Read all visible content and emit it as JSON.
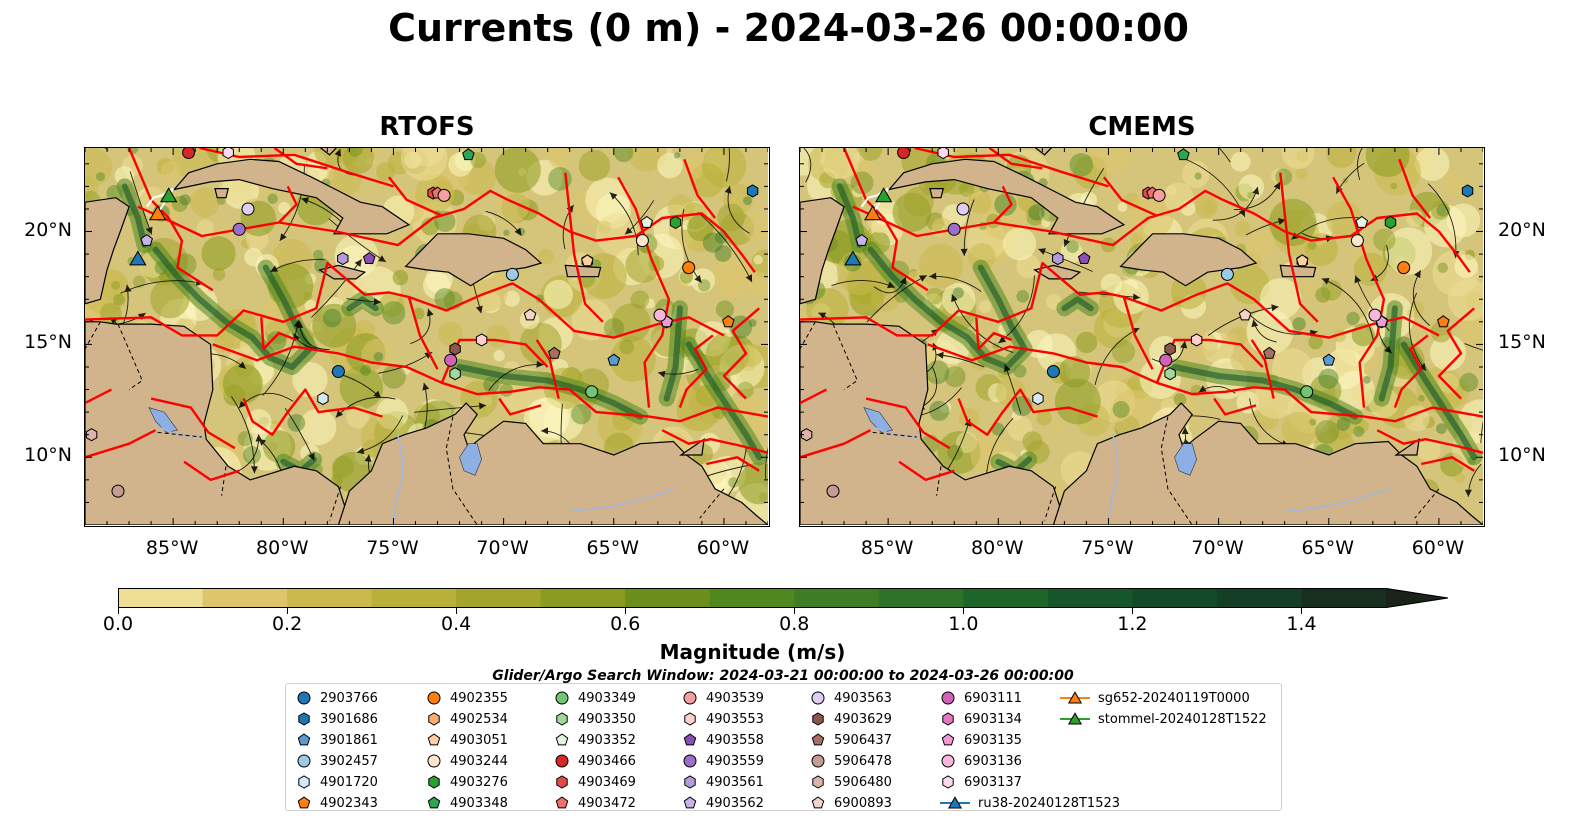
{
  "title": "Currents (0 m) - 2024-03-26 00:00:00",
  "panels": [
    {
      "id": "rtofs",
      "title": "RTOFS"
    },
    {
      "id": "cmems",
      "title": "CMEMS"
    }
  ],
  "map_extent": {
    "lon": [
      -89,
      -58
    ],
    "lat": [
      7,
      23.7
    ]
  },
  "lon_ticks": [
    "85°W",
    "80°W",
    "75°W",
    "70°W",
    "65°W",
    "60°W"
  ],
  "lat_ticks": [
    "20°N",
    "15°N",
    "10°N"
  ],
  "colorbar": {
    "label": "Magnitude (m/s)",
    "range": [
      0.0,
      1.5
    ],
    "extend": "max",
    "tick_labels": [
      "0.0",
      "0.2",
      "0.4",
      "0.6",
      "0.8",
      "1.0",
      "1.2",
      "1.4"
    ],
    "colors": [
      "#fdf7bf",
      "#efdf95",
      "#dcc56b",
      "#cbb94e",
      "#b9b03a",
      "#a2a42b",
      "#8a9b1f",
      "#6c8e1d",
      "#508820",
      "#3e7d25",
      "#2d7227",
      "#1c6629",
      "#15572a",
      "#134b28",
      "#143e25",
      "#172f1e",
      "#1a221a"
    ]
  },
  "colors": {
    "land": "#d2b48c",
    "eez_lines": "#ff0000",
    "rivers": "#a4b6dc",
    "lakes": "#8eafe3"
  },
  "search_window": "Glider/Argo Search Window: 2024-03-21 00:00:00 to 2024-03-26 00:00:00",
  "legend": {
    "items": [
      {
        "label": "2903766",
        "marker": "circle",
        "color": "#1f77b4"
      },
      {
        "label": "3901686",
        "marker": "hexagon",
        "color": "#1f77b4"
      },
      {
        "label": "3901861",
        "marker": "pentagon",
        "color": "#5a9bd4"
      },
      {
        "label": "3902457",
        "marker": "circle",
        "color": "#9ecae9"
      },
      {
        "label": "4901720",
        "marker": "hexagon",
        "color": "#d5e8f8"
      },
      {
        "label": "4902343",
        "marker": "pentagon",
        "color": "#ff7f0e"
      },
      {
        "label": "4902355",
        "marker": "circle",
        "color": "#ff7f0e"
      },
      {
        "label": "4902534",
        "marker": "hexagon",
        "color": "#fdae6b"
      },
      {
        "label": "4903051",
        "marker": "pentagon",
        "color": "#fdd0a2"
      },
      {
        "label": "4903244",
        "marker": "circle",
        "color": "#fee6ce"
      },
      {
        "label": "4903276",
        "marker": "hexagon",
        "color": "#2ca02c"
      },
      {
        "label": "4903348",
        "marker": "pentagon",
        "color": "#31a354"
      },
      {
        "label": "4903349",
        "marker": "circle",
        "color": "#74c476"
      },
      {
        "label": "4903350",
        "marker": "hexagon",
        "color": "#a1d99b"
      },
      {
        "label": "4903352",
        "marker": "pentagon",
        "color": "#e5f5e0"
      },
      {
        "label": "4903466",
        "marker": "circle",
        "color": "#d62728"
      },
      {
        "label": "4903469",
        "marker": "hexagon",
        "color": "#e34a4a"
      },
      {
        "label": "4903472",
        "marker": "pentagon",
        "color": "#f07070"
      },
      {
        "label": "4903539",
        "marker": "circle",
        "color": "#f4a0a0"
      },
      {
        "label": "4903553",
        "marker": "hexagon",
        "color": "#fdd0cf"
      },
      {
        "label": "4903558",
        "marker": "pentagon",
        "color": "#8a4fb5"
      },
      {
        "label": "4903559",
        "marker": "circle",
        "color": "#9e6fc9"
      },
      {
        "label": "4903561",
        "marker": "hexagon",
        "color": "#b49be0"
      },
      {
        "label": "4903562",
        "marker": "pentagon",
        "color": "#c5b3ea"
      },
      {
        "label": "4903563",
        "marker": "circle",
        "color": "#e0cdf2"
      },
      {
        "label": "4903629",
        "marker": "hexagon",
        "color": "#8c564b"
      },
      {
        "label": "5906437",
        "marker": "pentagon",
        "color": "#a86f62"
      },
      {
        "label": "5906478",
        "marker": "circle",
        "color": "#c49c94"
      },
      {
        "label": "5906480",
        "marker": "hexagon",
        "color": "#dbb3a8"
      },
      {
        "label": "6900893",
        "marker": "pentagon",
        "color": "#f2d5c9"
      },
      {
        "label": "6903111",
        "marker": "circle",
        "color": "#d162b8"
      },
      {
        "label": "6903134",
        "marker": "hexagon",
        "color": "#e377c2"
      },
      {
        "label": "6903135",
        "marker": "pentagon",
        "color": "#ef9bd4"
      },
      {
        "label": "6903136",
        "marker": "circle",
        "color": "#f7b6dc"
      },
      {
        "label": "6903137",
        "marker": "hexagon",
        "color": "#fcd9ee"
      },
      {
        "label": "ru38-20240128T1523",
        "marker": "triangle-line",
        "color": "#1f77b4"
      },
      {
        "label": "sg652-20240119T0000",
        "marker": "triangle-line",
        "color": "#ff7f0e"
      },
      {
        "label": "stommel-20240128T1522",
        "marker": "triangle-line",
        "color": "#2ca02c"
      }
    ]
  },
  "floats": [
    {
      "id": "2903766",
      "lon": -77.5,
      "lat": 13.8
    },
    {
      "id": "3901686",
      "lon": -58.7,
      "lat": 21.8
    },
    {
      "id": "3901861",
      "lon": -65.0,
      "lat": 14.3
    },
    {
      "id": "3902457",
      "lon": -69.6,
      "lat": 18.1
    },
    {
      "id": "4901720",
      "lon": -78.2,
      "lat": 12.6
    },
    {
      "id": "4902343",
      "lon": -59.8,
      "lat": 16.0
    },
    {
      "id": "4902355",
      "lon": -61.6,
      "lat": 18.4
    },
    {
      "id": "4902534",
      "lon": -66.2,
      "lat": 18.7
    },
    {
      "id": "4903051",
      "lon": -66.2,
      "lat": 18.7
    },
    {
      "id": "4903244",
      "lon": -63.7,
      "lat": 19.6
    },
    {
      "id": "4903276",
      "lon": -62.2,
      "lat": 20.4
    },
    {
      "id": "4903348",
      "lon": -71.6,
      "lat": 23.4
    },
    {
      "id": "4903349",
      "lon": -66.0,
      "lat": 12.9
    },
    {
      "id": "4903350",
      "lon": -72.2,
      "lat": 13.7
    },
    {
      "id": "4903352",
      "lon": -63.5,
      "lat": 20.4
    },
    {
      "id": "4903466",
      "lon": -84.3,
      "lat": 23.5
    },
    {
      "id": "4903469",
      "lon": -73.2,
      "lat": 21.7
    },
    {
      "id": "4903472",
      "lon": -73.0,
      "lat": 21.7
    },
    {
      "id": "4903539",
      "lon": -72.7,
      "lat": 21.6
    },
    {
      "id": "4903553",
      "lon": -71.0,
      "lat": 15.2
    },
    {
      "id": "4903558",
      "lon": -76.1,
      "lat": 18.8
    },
    {
      "id": "4903559",
      "lon": -82.0,
      "lat": 20.1
    },
    {
      "id": "4903561",
      "lon": -77.3,
      "lat": 18.8
    },
    {
      "id": "4903562",
      "lon": -86.2,
      "lat": 19.6
    },
    {
      "id": "4903563",
      "lon": -81.6,
      "lat": 21.0
    },
    {
      "id": "4903629",
      "lon": -72.2,
      "lat": 14.8
    },
    {
      "id": "5906437",
      "lon": -67.7,
      "lat": 14.6
    },
    {
      "id": "5906478",
      "lon": -87.5,
      "lat": 8.5
    },
    {
      "id": "5906480",
      "lon": -88.7,
      "lat": 11.0
    },
    {
      "id": "6900893",
      "lon": -68.8,
      "lat": 16.3
    },
    {
      "id": "6903111",
      "lon": -72.4,
      "lat": 14.3
    },
    {
      "id": "6903134",
      "lon": -62.6,
      "lat": 16.0
    },
    {
      "id": "6903135",
      "lon": -62.6,
      "lat": 16.0
    },
    {
      "id": "6903136",
      "lon": -62.9,
      "lat": 16.3
    },
    {
      "id": "6903137",
      "lon": -82.5,
      "lat": 23.5
    }
  ],
  "gliders": [
    {
      "id": "ru38-20240128T1523",
      "lon": -86.6,
      "lat": 18.8,
      "track": [
        [
          -86.6,
          18.8
        ],
        [
          -86.5,
          19.0
        ]
      ]
    },
    {
      "id": "sg652-20240119T0000",
      "lon": -85.7,
      "lat": 20.8,
      "track": [
        [
          -86.2,
          21.1
        ],
        [
          -85.9,
          21.5
        ],
        [
          -85.5,
          21.6
        ],
        [
          -85.0,
          21.9
        ],
        [
          -85.7,
          20.8
        ]
      ]
    },
    {
      "id": "stommel-20240128T1522",
      "lon": -85.2,
      "lat": 21.6,
      "track": [
        [
          -85.4,
          21.3
        ],
        [
          -85.2,
          21.6
        ]
      ]
    }
  ]
}
